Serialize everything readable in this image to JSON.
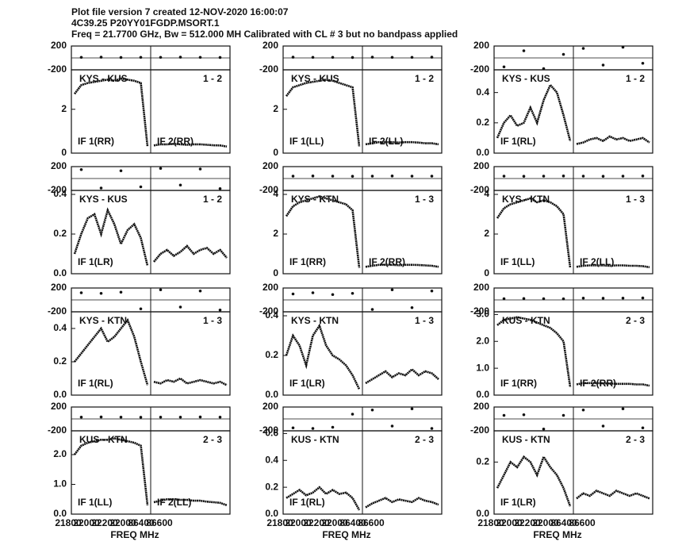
{
  "header": [
    "Plot file version 7  created 12-NOV-2020 16:00:07",
    "4C39.25   P20YY01FGDP.MSORT.1",
    "Freq = 21.7700 GHz, Bw = 512.000 MH   Calibrated with CL # 3 but no bandpass applied"
  ],
  "xlabel": "FREQ MHz",
  "x_tick_labels": [
    "21800",
    "22000",
    "22200",
    "22000",
    "86400",
    "86600"
  ],
  "phase_ylim": [
    -200,
    200
  ],
  "phase_yticks": [
    200,
    -200
  ],
  "chart_data": [
    {
      "type": "line",
      "baseline": "KYS - KUS",
      "antennas": "1 - 2",
      "if1": "IF 1(RR)",
      "if2": "IF 2(RR)",
      "ylim": [
        0,
        3.8
      ],
      "yticks": [
        0,
        2
      ],
      "amp": [
        2.7,
        3.1,
        3.2,
        3.25,
        3.3,
        3.35,
        3.3,
        3.4,
        3.35,
        3.3,
        3.2,
        0.3,
        0.35,
        0.4,
        0.4,
        0.42,
        0.4,
        0.38,
        0.4,
        0.4,
        0.38,
        0.36,
        0.35,
        0.3
      ],
      "phase": [
        10,
        12,
        8,
        10,
        10,
        12,
        10,
        8
      ]
    },
    {
      "type": "line",
      "baseline": "KYS - KUS",
      "antennas": "1 - 2",
      "if1": "IF 1(LL)",
      "if2": "IF 2(LL)",
      "ylim": [
        0,
        3.8
      ],
      "yticks": [
        0,
        2
      ],
      "amp": [
        2.6,
        3.0,
        3.1,
        3.2,
        3.25,
        3.3,
        3.35,
        3.3,
        3.2,
        3.1,
        3.0,
        0.3,
        0.4,
        0.45,
        0.5,
        0.5,
        0.5,
        0.48,
        0.5,
        0.5,
        0.48,
        0.45,
        0.45,
        0.4
      ],
      "phase": [
        12,
        10,
        10,
        8,
        12,
        10,
        10,
        12
      ]
    },
    {
      "type": "line",
      "baseline": "KYS - KUS",
      "antennas": "1 - 2",
      "if1": "IF 1(RL)",
      "ylim": [
        0,
        0.55
      ],
      "yticks": [
        {
          "value": 0,
          "label": "0.0"
        },
        0.2,
        0.4
      ],
      "amp": [
        0.1,
        0.2,
        0.25,
        0.18,
        0.2,
        0.3,
        0.2,
        0.35,
        0.45,
        0.4,
        0.25,
        0.08,
        0.06,
        0.07,
        0.09,
        0.1,
        0.08,
        0.11,
        0.09,
        0.1,
        0.08,
        0.09,
        0.1,
        0.07
      ],
      "phase": [
        -150,
        120,
        -180,
        60,
        160,
        -120,
        180,
        -90
      ]
    },
    {
      "type": "line",
      "baseline": "KYS - KUS",
      "antennas": "1 - 2",
      "if1": "IF 1(LR)",
      "ylim": [
        0,
        0.42
      ],
      "yticks": [
        {
          "value": 0,
          "label": "0.0"
        },
        0.2,
        0.4
      ],
      "amp": [
        0.1,
        0.2,
        0.28,
        0.3,
        0.2,
        0.32,
        0.25,
        0.15,
        0.22,
        0.25,
        0.18,
        0.04,
        0.06,
        0.1,
        0.12,
        0.09,
        0.11,
        0.14,
        0.1,
        0.12,
        0.13,
        0.1,
        0.12,
        0.08
      ],
      "phase": [
        150,
        -160,
        130,
        -140,
        170,
        -110,
        160,
        -170
      ]
    },
    {
      "type": "line",
      "baseline": "KYS - KTN",
      "antennas": "1 - 3",
      "if1": "IF 1(RR)",
      "if2": "IF 2(RR)",
      "ylim": [
        0,
        4.2
      ],
      "yticks": [
        0,
        2,
        4
      ],
      "amp": [
        2.9,
        3.4,
        3.6,
        3.7,
        3.8,
        3.9,
        3.8,
        3.7,
        3.6,
        3.5,
        3.2,
        0.3,
        0.35,
        0.4,
        0.45,
        0.45,
        0.45,
        0.43,
        0.45,
        0.45,
        0.44,
        0.42,
        0.4,
        0.35
      ],
      "phase": [
        40,
        42,
        40,
        38,
        40,
        42,
        40,
        40
      ]
    },
    {
      "type": "line",
      "baseline": "KYS - KTN",
      "antennas": "1 - 3",
      "if1": "IF 1(LL)",
      "if2": "IF 2(LL)",
      "ylim": [
        0,
        4.2
      ],
      "yticks": [
        0,
        2,
        4
      ],
      "amp": [
        2.8,
        3.3,
        3.5,
        3.6,
        3.7,
        3.8,
        3.6,
        3.7,
        3.6,
        3.4,
        3.0,
        0.3,
        0.35,
        0.4,
        0.42,
        0.42,
        0.42,
        0.4,
        0.42,
        0.42,
        0.4,
        0.4,
        0.38,
        0.33
      ],
      "phase": [
        40,
        38,
        40,
        42,
        40,
        38,
        40,
        42
      ]
    },
    {
      "type": "line",
      "baseline": "KYS - KTN",
      "antennas": "1 - 3",
      "if1": "IF 1(RL)",
      "ylim": [
        0,
        0.5
      ],
      "yticks": [
        {
          "value": 0,
          "label": "0.0"
        },
        0.2,
        0.4
      ],
      "amp": [
        0.2,
        0.25,
        0.3,
        0.35,
        0.4,
        0.32,
        0.35,
        0.4,
        0.45,
        0.35,
        0.2,
        0.06,
        0.08,
        0.07,
        0.09,
        0.08,
        0.1,
        0.07,
        0.08,
        0.09,
        0.08,
        0.07,
        0.08,
        0.06
      ],
      "phase": [
        120,
        110,
        130,
        -150,
        170,
        -120,
        150,
        -170
      ]
    },
    {
      "type": "line",
      "baseline": "KYS - KTN",
      "antennas": "1 - 3",
      "if1": "IF 1(LR)",
      "ylim": [
        0,
        0.42
      ],
      "yticks": [
        {
          "value": 0,
          "label": "0.0"
        },
        0.2,
        0.4
      ],
      "amp": [
        0.2,
        0.3,
        0.25,
        0.15,
        0.3,
        0.35,
        0.25,
        0.2,
        0.18,
        0.15,
        0.1,
        0.03,
        0.06,
        0.08,
        0.1,
        0.12,
        0.09,
        0.11,
        0.1,
        0.13,
        0.1,
        0.12,
        0.11,
        0.08
      ],
      "phase": [
        100,
        120,
        90,
        110,
        -160,
        170,
        -130,
        150
      ]
    },
    {
      "type": "line",
      "baseline": "KUS - KTN",
      "antennas": "2 - 3",
      "if1": "IF 1(RR)",
      "if2": "IF 2(RR)",
      "ylim": [
        0,
        3.1
      ],
      "yticks": [
        {
          "value": 0,
          "label": "0.0"
        },
        {
          "value": 1,
          "label": "1.0"
        },
        {
          "value": 2,
          "label": "2.0"
        },
        {
          "value": 3,
          "label": "3.0"
        }
      ],
      "amp": [
        2.6,
        2.8,
        2.85,
        2.9,
        2.85,
        2.8,
        2.7,
        2.6,
        2.5,
        2.3,
        2.0,
        0.3,
        0.4,
        0.45,
        0.45,
        0.45,
        0.44,
        0.43,
        0.42,
        0.42,
        0.42,
        0.4,
        0.4,
        0.35
      ],
      "phase": [
        20,
        22,
        20,
        18,
        30,
        28,
        30,
        32
      ]
    },
    {
      "type": "line",
      "baseline": "KUS - KTN",
      "antennas": "2 - 3",
      "if1": "IF 1(LL)",
      "if2": "IF 2(LL)",
      "ylim": [
        0,
        2.8
      ],
      "yticks": [
        {
          "value": 0,
          "label": "0.0"
        },
        {
          "value": 1,
          "label": "1.0"
        },
        {
          "value": 2,
          "label": "2.0"
        }
      ],
      "amp": [
        2.0,
        2.3,
        2.4,
        2.45,
        2.5,
        2.5,
        2.55,
        2.5,
        2.45,
        2.4,
        2.3,
        0.3,
        0.4,
        0.45,
        0.5,
        0.5,
        0.48,
        0.48,
        0.45,
        0.45,
        0.42,
        0.4,
        0.38,
        0.3
      ],
      "phase": [
        30,
        32,
        30,
        28,
        30,
        30,
        32,
        30
      ]
    },
    {
      "type": "line",
      "baseline": "KUS - KTN",
      "antennas": "2 - 3",
      "if1": "IF 1(RL)",
      "ylim": [
        0,
        0.62
      ],
      "yticks": [
        {
          "value": 0,
          "label": "0.0"
        },
        0.2,
        0.4,
        0.6
      ],
      "amp": [
        0.12,
        0.15,
        0.18,
        0.14,
        0.16,
        0.2,
        0.15,
        0.18,
        0.15,
        0.16,
        0.12,
        0.03,
        0.05,
        0.08,
        0.1,
        0.12,
        0.09,
        0.11,
        0.1,
        0.09,
        0.12,
        0.1,
        0.09,
        0.07
      ],
      "phase": [
        -150,
        -160,
        -140,
        80,
        150,
        -120,
        170,
        -160
      ]
    },
    {
      "type": "line",
      "baseline": "KUS - KTN",
      "antennas": "2 - 3",
      "if1": "IF 1(LR)",
      "ylim": [
        0,
        0.32
      ],
      "yticks": [
        {
          "value": 0,
          "label": "0.0"
        },
        0.2
      ],
      "amp": [
        0.1,
        0.15,
        0.2,
        0.18,
        0.22,
        0.2,
        0.15,
        0.22,
        0.18,
        0.15,
        0.1,
        0.03,
        0.06,
        0.08,
        0.07,
        0.09,
        0.08,
        0.07,
        0.09,
        0.08,
        0.07,
        0.08,
        0.07,
        0.06
      ],
      "phase": [
        60,
        70,
        -170,
        60,
        150,
        -120,
        170,
        -150
      ]
    }
  ]
}
